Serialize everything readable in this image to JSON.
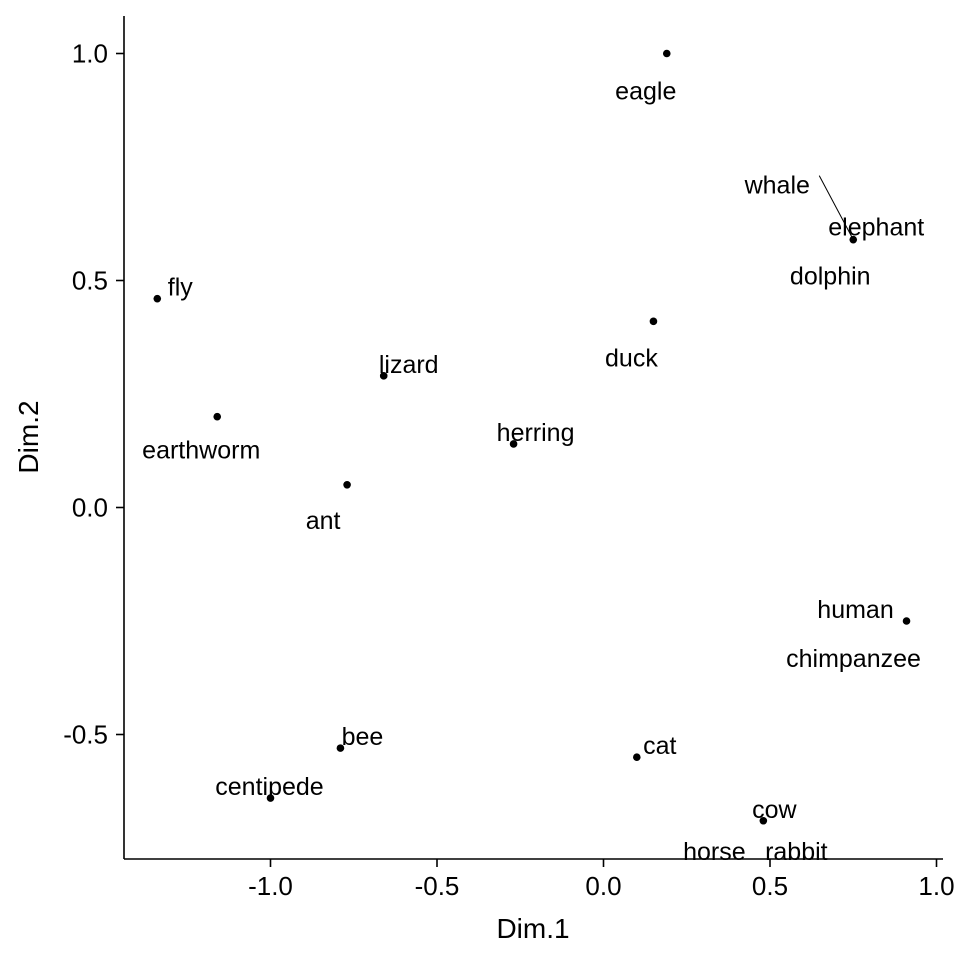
{
  "chart_data": {
    "type": "scatter",
    "xlabel": "Dim.1",
    "ylabel": "Dim.2",
    "xlim": [
      -1.45,
      1.02
    ],
    "ylim": [
      -0.77,
      1.08
    ],
    "xticks": [
      -1.0,
      -0.5,
      0.0,
      0.5,
      1.0
    ],
    "xtick_labels": [
      "-1.0",
      "-0.5",
      "0.0",
      "0.5",
      "1.0"
    ],
    "yticks": [
      -0.5,
      0.0,
      0.5,
      1.0
    ],
    "ytick_labels": [
      "-0.5",
      "0.0",
      "0.5",
      "1.0"
    ],
    "grid": false,
    "point_color": "#000000",
    "points": [
      {
        "x": 0.19,
        "y": 1.0,
        "labels": [
          "eagle"
        ]
      },
      {
        "x": 0.75,
        "y": 0.59,
        "labels": [
          "whale",
          "elephant",
          "dolphin"
        ]
      },
      {
        "x": -1.34,
        "y": 0.46,
        "labels": [
          "fly"
        ]
      },
      {
        "x": 0.15,
        "y": 0.41,
        "labels": [
          "duck"
        ]
      },
      {
        "x": -0.66,
        "y": 0.29,
        "labels": [
          "lizard"
        ]
      },
      {
        "x": -1.16,
        "y": 0.2,
        "labels": [
          "earthworm"
        ]
      },
      {
        "x": -0.27,
        "y": 0.14,
        "labels": [
          "herring"
        ]
      },
      {
        "x": -0.77,
        "y": 0.05,
        "labels": [
          "ant"
        ]
      },
      {
        "x": 0.91,
        "y": -0.25,
        "labels": [
          "human",
          "chimpanzee"
        ]
      },
      {
        "x": -0.79,
        "y": -0.53,
        "labels": [
          "bee"
        ]
      },
      {
        "x": 0.1,
        "y": -0.55,
        "labels": [
          "cat"
        ]
      },
      {
        "x": -1.0,
        "y": -0.64,
        "labels": [
          "centipede"
        ]
      },
      {
        "x": 0.48,
        "y": -0.69,
        "labels": [
          "cow",
          "horse",
          "rabbit"
        ]
      }
    ]
  }
}
